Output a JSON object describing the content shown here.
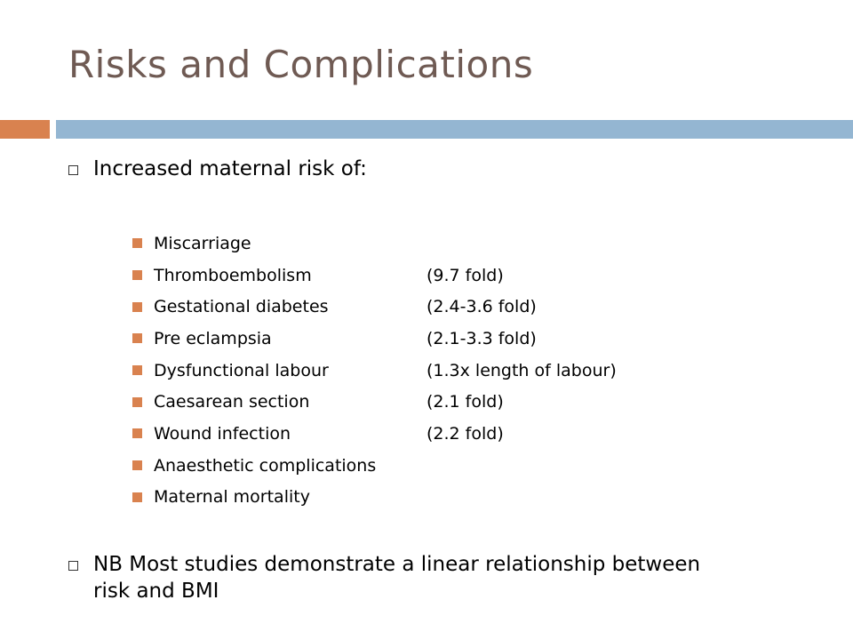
{
  "slide": {
    "title": "Risks and Complications",
    "colors": {
      "title": "#6f5a53",
      "accent": "#d9824f",
      "bar": "#94b6d2"
    },
    "bullets": [
      {
        "text": "Increased maternal risk of:",
        "bullet_icon": "hollow-square"
      },
      {
        "text": "NB Most studies demonstrate a linear relationship between risk and BMI",
        "bullet_icon": "hollow-square"
      }
    ],
    "sub_bullets": [
      {
        "label": "Miscarriage",
        "value": ""
      },
      {
        "label": "Thromboembolism",
        "value": "(9.7 fold)"
      },
      {
        "label": "Gestational diabetes",
        "value": "(2.4-3.6 fold)"
      },
      {
        "label": "Pre eclampsia",
        "value": "(2.1-3.3 fold)"
      },
      {
        "label": "Dysfunctional labour",
        "value": "(1.3x length of labour)"
      },
      {
        "label": "Caesarean section",
        "value": "(2.1 fold)"
      },
      {
        "label": "Wound infection",
        "value": "(2.2 fold)"
      },
      {
        "label": "Anaesthetic complications",
        "value": ""
      },
      {
        "label": "Maternal mortality",
        "value": ""
      }
    ]
  }
}
